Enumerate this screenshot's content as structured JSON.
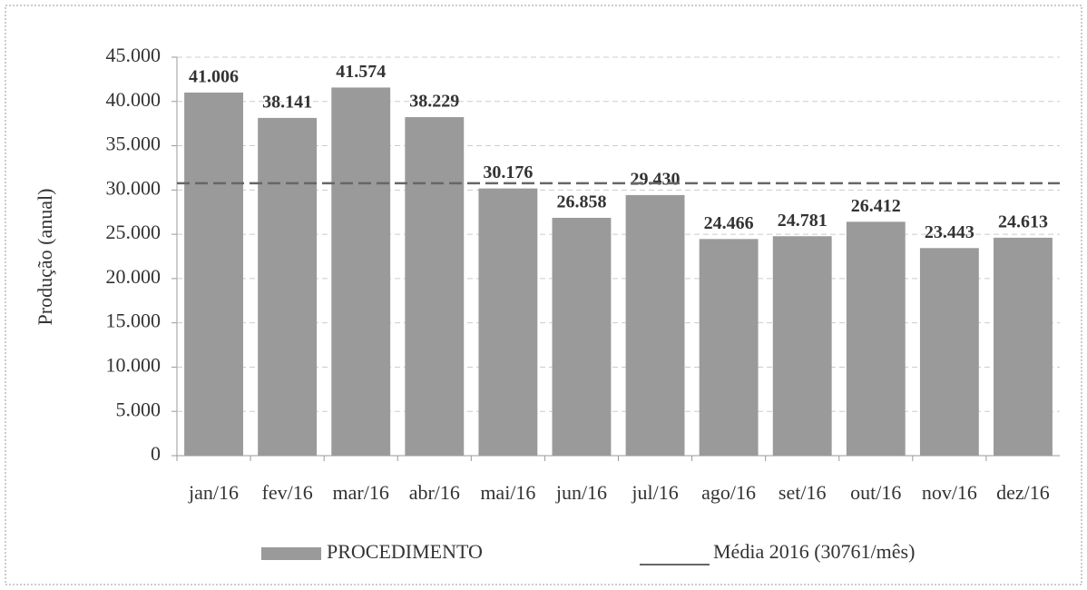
{
  "chart_data": {
    "type": "bar",
    "y_label": "Produção (anual)",
    "categories": [
      "jan/16",
      "fev/16",
      "mar/16",
      "abr/16",
      "mai/16",
      "jun/16",
      "jul/16",
      "ago/16",
      "set/16",
      "out/16",
      "nov/16",
      "dez/16"
    ],
    "series": [
      {
        "name": "PROCEDIMENTO",
        "color": "#9a9a9a",
        "values": [
          41006,
          38141,
          41574,
          38229,
          30176,
          26858,
          29430,
          24466,
          24781,
          26412,
          23443,
          24613
        ],
        "value_labels": [
          "41.006",
          "38.141",
          "41.574",
          "38.229",
          "30.176",
          "26.858",
          "29.430",
          "24.466",
          "24.781",
          "26.412",
          "23.443",
          "24.613"
        ]
      }
    ],
    "average": {
      "name": "Média 2016 (30761/mês)",
      "value": 30761,
      "color": "#666666"
    },
    "ylim": [
      0,
      45000
    ],
    "yticks": [
      0,
      {
        "value": 5000,
        "label": "5.000"
      },
      {
        "value": 10000,
        "label": "10.000"
      },
      {
        "value": 15000,
        "label": "15.000"
      },
      {
        "value": 20000,
        "label": "20.000"
      },
      {
        "value": 25000,
        "label": "25.000"
      },
      {
        "value": 30000,
        "label": "30.000"
      },
      {
        "value": 35000,
        "label": "35.000"
      },
      {
        "value": 40000,
        "label": "40.000"
      },
      {
        "value": 45000,
        "label": "45.000"
      }
    ],
    "grid": true,
    "legend": "bottom"
  }
}
